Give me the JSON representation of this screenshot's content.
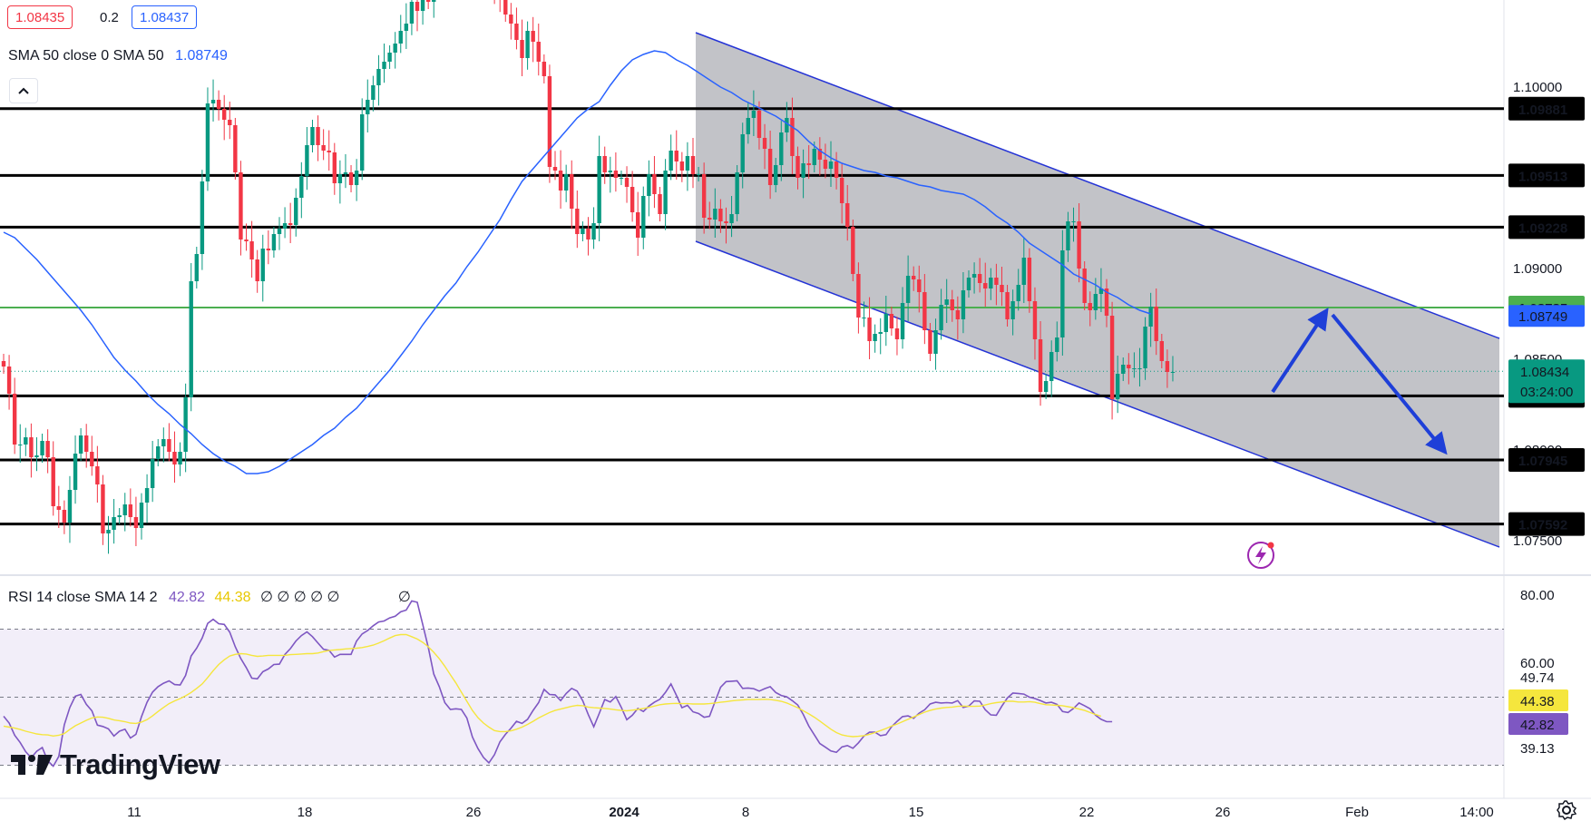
{
  "header": {
    "bid": "1.08435",
    "spread": "0.2",
    "ask": "1.08437",
    "sma_label": "SMA 50 close 0 SMA 50",
    "sma_value": "1.08749"
  },
  "rsi_legend": {
    "label": "RSI 14 close SMA 14 2",
    "rsi_value": "42.82",
    "sma_value": "44.38",
    "placeholders": "∅ ∅ ∅ ∅ ∅",
    "placeholder_extra": "∅"
  },
  "colors": {
    "up": "#089981",
    "down": "#f23645",
    "sma": "#2962ff",
    "channel_fill": "#787b86",
    "green_level": "#4caf50",
    "rsi_line": "#7e57c2",
    "rsi_sma": "#f5e63d",
    "arrow": "#1e3fd8"
  },
  "chart_data": [
    {
      "type": "candlestick",
      "symbol_interval": "4h",
      "y_ticks": [
        "1.10000",
        "1.09000",
        "1.08500",
        "1.08000",
        "1.07500"
      ],
      "ylim": [
        1.0738,
        1.1048
      ],
      "x_ticks": [
        "11",
        "18",
        "26",
        "2024",
        "8",
        "15",
        "22",
        "26",
        "Feb",
        "14:00"
      ],
      "horizontal_levels": [
        {
          "value": 1.09881,
          "label": "1.09881",
          "color": "#000000"
        },
        {
          "value": 1.09513,
          "label": "1.09513",
          "color": "#000000"
        },
        {
          "value": 1.09228,
          "label": "1.09228",
          "color": "#000000"
        },
        {
          "value": 1.08785,
          "label": "1.08785",
          "color": "#4caf50"
        },
        {
          "value": 1.08298,
          "label": "1.08298",
          "color": "#000000"
        },
        {
          "value": 1.07945,
          "label": "1.07945",
          "color": "#000000"
        },
        {
          "value": 1.07592,
          "label": "1.07592",
          "color": "#000000"
        }
      ],
      "sma50_label_value": "1.08749",
      "last_price_label": "1.08434",
      "countdown_label": "03:24:00",
      "closes": [
        1.0846,
        1.0831,
        1.0803,
        1.0803,
        1.0807,
        1.0796,
        1.0797,
        1.0805,
        1.0796,
        1.0769,
        1.0767,
        1.076,
        1.0778,
        1.0798,
        1.0808,
        1.0799,
        1.0791,
        1.0781,
        1.0754,
        1.0756,
        1.0763,
        1.0764,
        1.077,
        1.0763,
        1.0757,
        1.0771,
        1.0779,
        1.0795,
        1.0802,
        1.0806,
        1.0799,
        1.0792,
        1.0799,
        1.0829,
        1.0893,
        1.0908,
        1.0948,
        1.0991,
        1.0993,
        1.0988,
        1.0982,
        1.0979,
        1.0953,
        1.0916,
        1.0915,
        1.0905,
        1.0893,
        1.0911,
        1.091,
        1.0919,
        1.0922,
        1.0925,
        1.0924,
        1.0939,
        1.0951,
        1.0968,
        1.0978,
        1.0968,
        1.0965,
        1.0964,
        1.0947,
        1.0952,
        1.0953,
        1.0946,
        1.0954,
        1.0985,
        1.0993,
        1.1001,
        1.101,
        1.1014,
        1.1019,
        1.1024,
        1.1031,
        1.1035,
        1.1047,
        1.1042,
        1.1058,
        1.1047,
        1.1056,
        1.1061,
        1.1061,
        1.1069,
        1.1068,
        1.1072,
        1.107,
        1.1073,
        1.1079,
        1.1072,
        1.1075,
        1.1057,
        1.1049,
        1.104,
        1.1035,
        1.1026,
        1.1016,
        1.1031,
        1.1025,
        1.1014,
        1.1006,
        1.0956,
        1.0954,
        1.0943,
        1.0952,
        1.0933,
        1.0919,
        1.0922,
        1.0916,
        1.0925,
        1.0962,
        1.0953,
        1.0954,
        1.095,
        1.095,
        1.0945,
        1.0931,
        1.0917,
        1.094,
        1.0952,
        1.0941,
        1.093,
        1.0954,
        1.0965,
        1.0959,
        1.0954,
        1.0962,
        1.0952,
        1.0952,
        1.0928,
        1.0927,
        1.0933,
        1.0926,
        1.0925,
        1.093,
        1.0953,
        1.0974,
        1.0983,
        1.0987,
        1.0972,
        1.0966,
        1.0946,
        1.0957,
        1.0975,
        1.0983,
        1.0962,
        1.095,
        1.0958,
        1.0957,
        1.0966,
        1.096,
        1.0955,
        1.0959,
        1.095,
        1.0936,
        1.0923,
        1.0897,
        1.0873,
        1.0873,
        1.086,
        1.0864,
        1.0865,
        1.0875,
        1.0867,
        1.0861,
        1.0881,
        1.0896,
        1.0894,
        1.0887,
        1.0866,
        1.0853,
        1.0866,
        1.088,
        1.0883,
        1.0877,
        1.0872,
        1.0888,
        1.0895,
        1.0897,
        1.0892,
        1.0889,
        1.0895,
        1.0891,
        1.0887,
        1.0872,
        1.0882,
        1.0891,
        1.0906,
        1.0882,
        1.0861,
        1.0832,
        1.0838,
        1.0854,
        1.0862,
        1.091,
        1.0926,
        1.0926,
        1.09,
        1.0881,
        1.0877,
        1.0886,
        1.0889,
        1.0874,
        1.0828,
        1.0842,
        1.0847,
        1.0845,
        1.0845,
        1.0845,
        1.0868,
        1.0879,
        1.086,
        1.0849,
        1.0843,
        1.0843
      ],
      "sma50": [
        1.092,
        1.0917,
        1.0911,
        1.0905,
        1.0898,
        1.0891,
        1.0884,
        1.0877,
        1.0869,
        1.086,
        1.0851,
        1.0844,
        1.0838,
        1.0831,
        1.0825,
        1.082,
        1.0814,
        1.0809,
        1.0803,
        1.0798,
        1.0794,
        1.0791,
        1.0787,
        1.0787,
        1.0788,
        1.0791,
        1.0795,
        1.0799,
        1.0803,
        1.0808,
        1.0812,
        1.0818,
        1.0823,
        1.083,
        1.0837,
        1.0844,
        1.0852,
        1.086,
        1.0869,
        1.0877,
        1.0885,
        1.0892,
        1.0901,
        1.0909,
        1.0918,
        1.0927,
        1.0938,
        1.0948,
        1.0955,
        1.0962,
        1.0969,
        1.0976,
        1.0983,
        1.0988,
        1.0992,
        1.1001,
        1.1009,
        1.1015,
        1.1018,
        1.102,
        1.1019,
        1.1015,
        1.1012,
        1.1008,
        1.1004,
        1.1,
        1.0997,
        1.0993,
        1.099,
        1.0987,
        1.0984,
        1.098,
        1.0976,
        1.097,
        1.0965,
        1.0961,
        1.0958,
        1.0956,
        1.0954,
        1.0953,
        1.0951,
        1.095,
        1.0948,
        1.0946,
        1.0945,
        1.0943,
        1.0942,
        1.0941,
        1.0938,
        1.0934,
        1.0929,
        1.0925,
        1.092,
        1.0914,
        1.091,
        1.0906,
        1.0902,
        1.0897,
        1.0894,
        1.0891,
        1.0887,
        1.0884,
        1.088,
        1.0877,
        1.0875
      ]
    },
    {
      "type": "line",
      "title": "RSI 14 close SMA 14 2",
      "y_ticks": [
        "80.00",
        "60.00"
      ],
      "axis_labels": [
        "49.74",
        "44.38",
        "42.82",
        "39.13"
      ],
      "ylim": [
        25,
        84
      ],
      "bands": [
        70,
        30
      ],
      "midline": 50,
      "series": [
        {
          "name": "RSI",
          "values": [
            44.4,
            42.4,
            38.8,
            36.7,
            34.0,
            32.2,
            34.1,
            35.2,
            31.3,
            29.7,
            32.6,
            41.9,
            47.0,
            50.3,
            50.8,
            47.9,
            46.0,
            41.8,
            41.4,
            40.7,
            38.6,
            40.0,
            40.6,
            38.0,
            39.1,
            44.3,
            48.5,
            51.5,
            53.1,
            54.1,
            54.8,
            53.7,
            53.6,
            56.4,
            62.1,
            64.4,
            67.4,
            71.7,
            72.9,
            71.6,
            71.4,
            69.1,
            64.8,
            61.4,
            58.7,
            55.6,
            55.4,
            57.5,
            58.3,
            59.6,
            59.7,
            62.6,
            64.3,
            66.5,
            68.1,
            69.2,
            67.8,
            65.9,
            64.1,
            63.8,
            61.8,
            62.6,
            62.6,
            62.6,
            66.5,
            68.6,
            69.6,
            71.0,
            72.1,
            72.4,
            73.3,
            73.8,
            75.1,
            75.6,
            78.3,
            77.9,
            71.3,
            64.6,
            56.8,
            53.1,
            48.4,
            46.4,
            46.6,
            46.4,
            43.9,
            38.3,
            34.9,
            32.3,
            30.7,
            33.1,
            36.9,
            39.1,
            40.9,
            42.9,
            42.3,
            43.5,
            46.1,
            48.4,
            52.3,
            50.8,
            50.7,
            49.0,
            51.1,
            52.6,
            51.8,
            49.0,
            44.9,
            41.3,
            45.2,
            49.3,
            48.6,
            50.2,
            47.0,
            43.4,
            44.7,
            46.7,
            45.8,
            47.4,
            48.5,
            49.4,
            51.4,
            53.9,
            50.5,
            46.9,
            47.6,
            45.7,
            45.2,
            44.1,
            44.4,
            48.7,
            52.9,
            54.6,
            54.7,
            54.8,
            52.6,
            52.7,
            52.5,
            51.8,
            52.5,
            53.1,
            51.4,
            50.5,
            50.1,
            49.0,
            47.7,
            44.9,
            41.5,
            38.9,
            36.4,
            35.3,
            34.2,
            33.8,
            35.4,
            35.8,
            35.0,
            36.6,
            38.6,
            39.7,
            39.7,
            38.7,
            39.0,
            41.3,
            42.9,
            44.3,
            44.5,
            43.8,
            45.3,
            46.3,
            48.0,
            48.5,
            48.3,
            48.4,
            48.3,
            49.0,
            47.0,
            47.4,
            48.9,
            48.8,
            46.3,
            44.8,
            44.7,
            47.4,
            49.8,
            51.2,
            51.1,
            50.9,
            50.0,
            49.6,
            49.0,
            48.3,
            48.5,
            47.9,
            45.8,
            45.5,
            46.7,
            48.3,
            47.5,
            46.6,
            44.7,
            43.5,
            42.8,
            42.8
          ]
        },
        {
          "name": "SMA",
          "values": [
            41.5,
            41.2,
            40.9,
            40.5,
            40.0,
            39.6,
            39.2,
            39.0,
            38.9,
            38.6,
            38.8,
            39.3,
            40.5,
            41.6,
            42.4,
            43.2,
            43.9,
            44.2,
            44.1,
            43.8,
            43.3,
            43.1,
            42.8,
            42.4,
            42.3,
            42.7,
            43.4,
            44.5,
            45.8,
            47.0,
            48.1,
            48.9,
            49.6,
            50.4,
            51.4,
            52.6,
            53.9,
            55.8,
            57.8,
            59.6,
            61.0,
            62.1,
            62.6,
            62.8,
            62.7,
            62.3,
            62.0,
            62.1,
            62.3,
            62.3,
            62.3,
            62.3,
            62.5,
            62.6,
            62.7,
            62.8,
            62.8,
            63.0,
            63.4,
            63.7,
            63.9,
            64.0,
            64.2,
            64.3,
            64.4,
            64.6,
            64.9,
            65.3,
            65.9,
            66.6,
            67.4,
            68.1,
            68.4,
            68.4,
            67.8,
            67.1,
            66.1,
            64.8,
            63.2,
            61.3,
            59.1,
            56.6,
            54.2,
            51.5,
            48.8,
            46.1,
            44.0,
            42.4,
            41.2,
            40.2,
            39.9,
            39.9,
            40.1,
            40.6,
            41.2,
            42.0,
            42.9,
            43.9,
            44.7,
            45.5,
            46.1,
            46.5,
            46.9,
            47.3,
            47.6,
            47.5,
            47.1,
            46.9,
            46.8,
            46.7,
            46.5,
            46.3,
            46.1,
            46.0,
            46.2,
            46.4,
            46.7,
            47.0,
            47.4,
            47.8,
            48.0,
            48.1,
            48.2,
            48.1,
            48.1,
            48.0,
            48.0,
            48.0,
            48.1,
            48.3,
            48.5,
            48.7,
            48.9,
            49.1,
            49.2,
            49.3,
            49.3,
            49.3,
            49.4,
            49.3,
            49.1,
            48.8,
            48.3,
            47.6,
            46.9,
            46.0,
            45.1,
            44.1,
            43.0,
            41.8,
            40.6,
            39.6,
            38.9,
            38.6,
            38.4,
            38.5,
            38.7,
            39.1,
            39.6,
            40.2,
            40.8,
            41.5,
            42.1,
            42.8,
            43.5,
            44.2,
            44.9,
            45.6,
            46.1,
            46.5,
            46.8,
            47.0,
            47.1,
            47.3,
            47.4,
            47.3,
            47.3,
            47.4,
            47.7,
            48.1,
            48.4,
            48.6,
            48.8,
            48.8,
            48.6,
            48.6,
            48.7,
            48.5,
            48.1,
            47.8,
            47.7,
            47.6,
            47.5,
            47.2,
            46.9,
            46.5,
            46.1,
            45.5,
            44.9,
            44.4
          ]
        }
      ]
    }
  ],
  "drawings": {
    "channel_label": "descending channel",
    "forecast_arrows": "up then down"
  },
  "branding": {
    "logo_text": "TradingView"
  }
}
